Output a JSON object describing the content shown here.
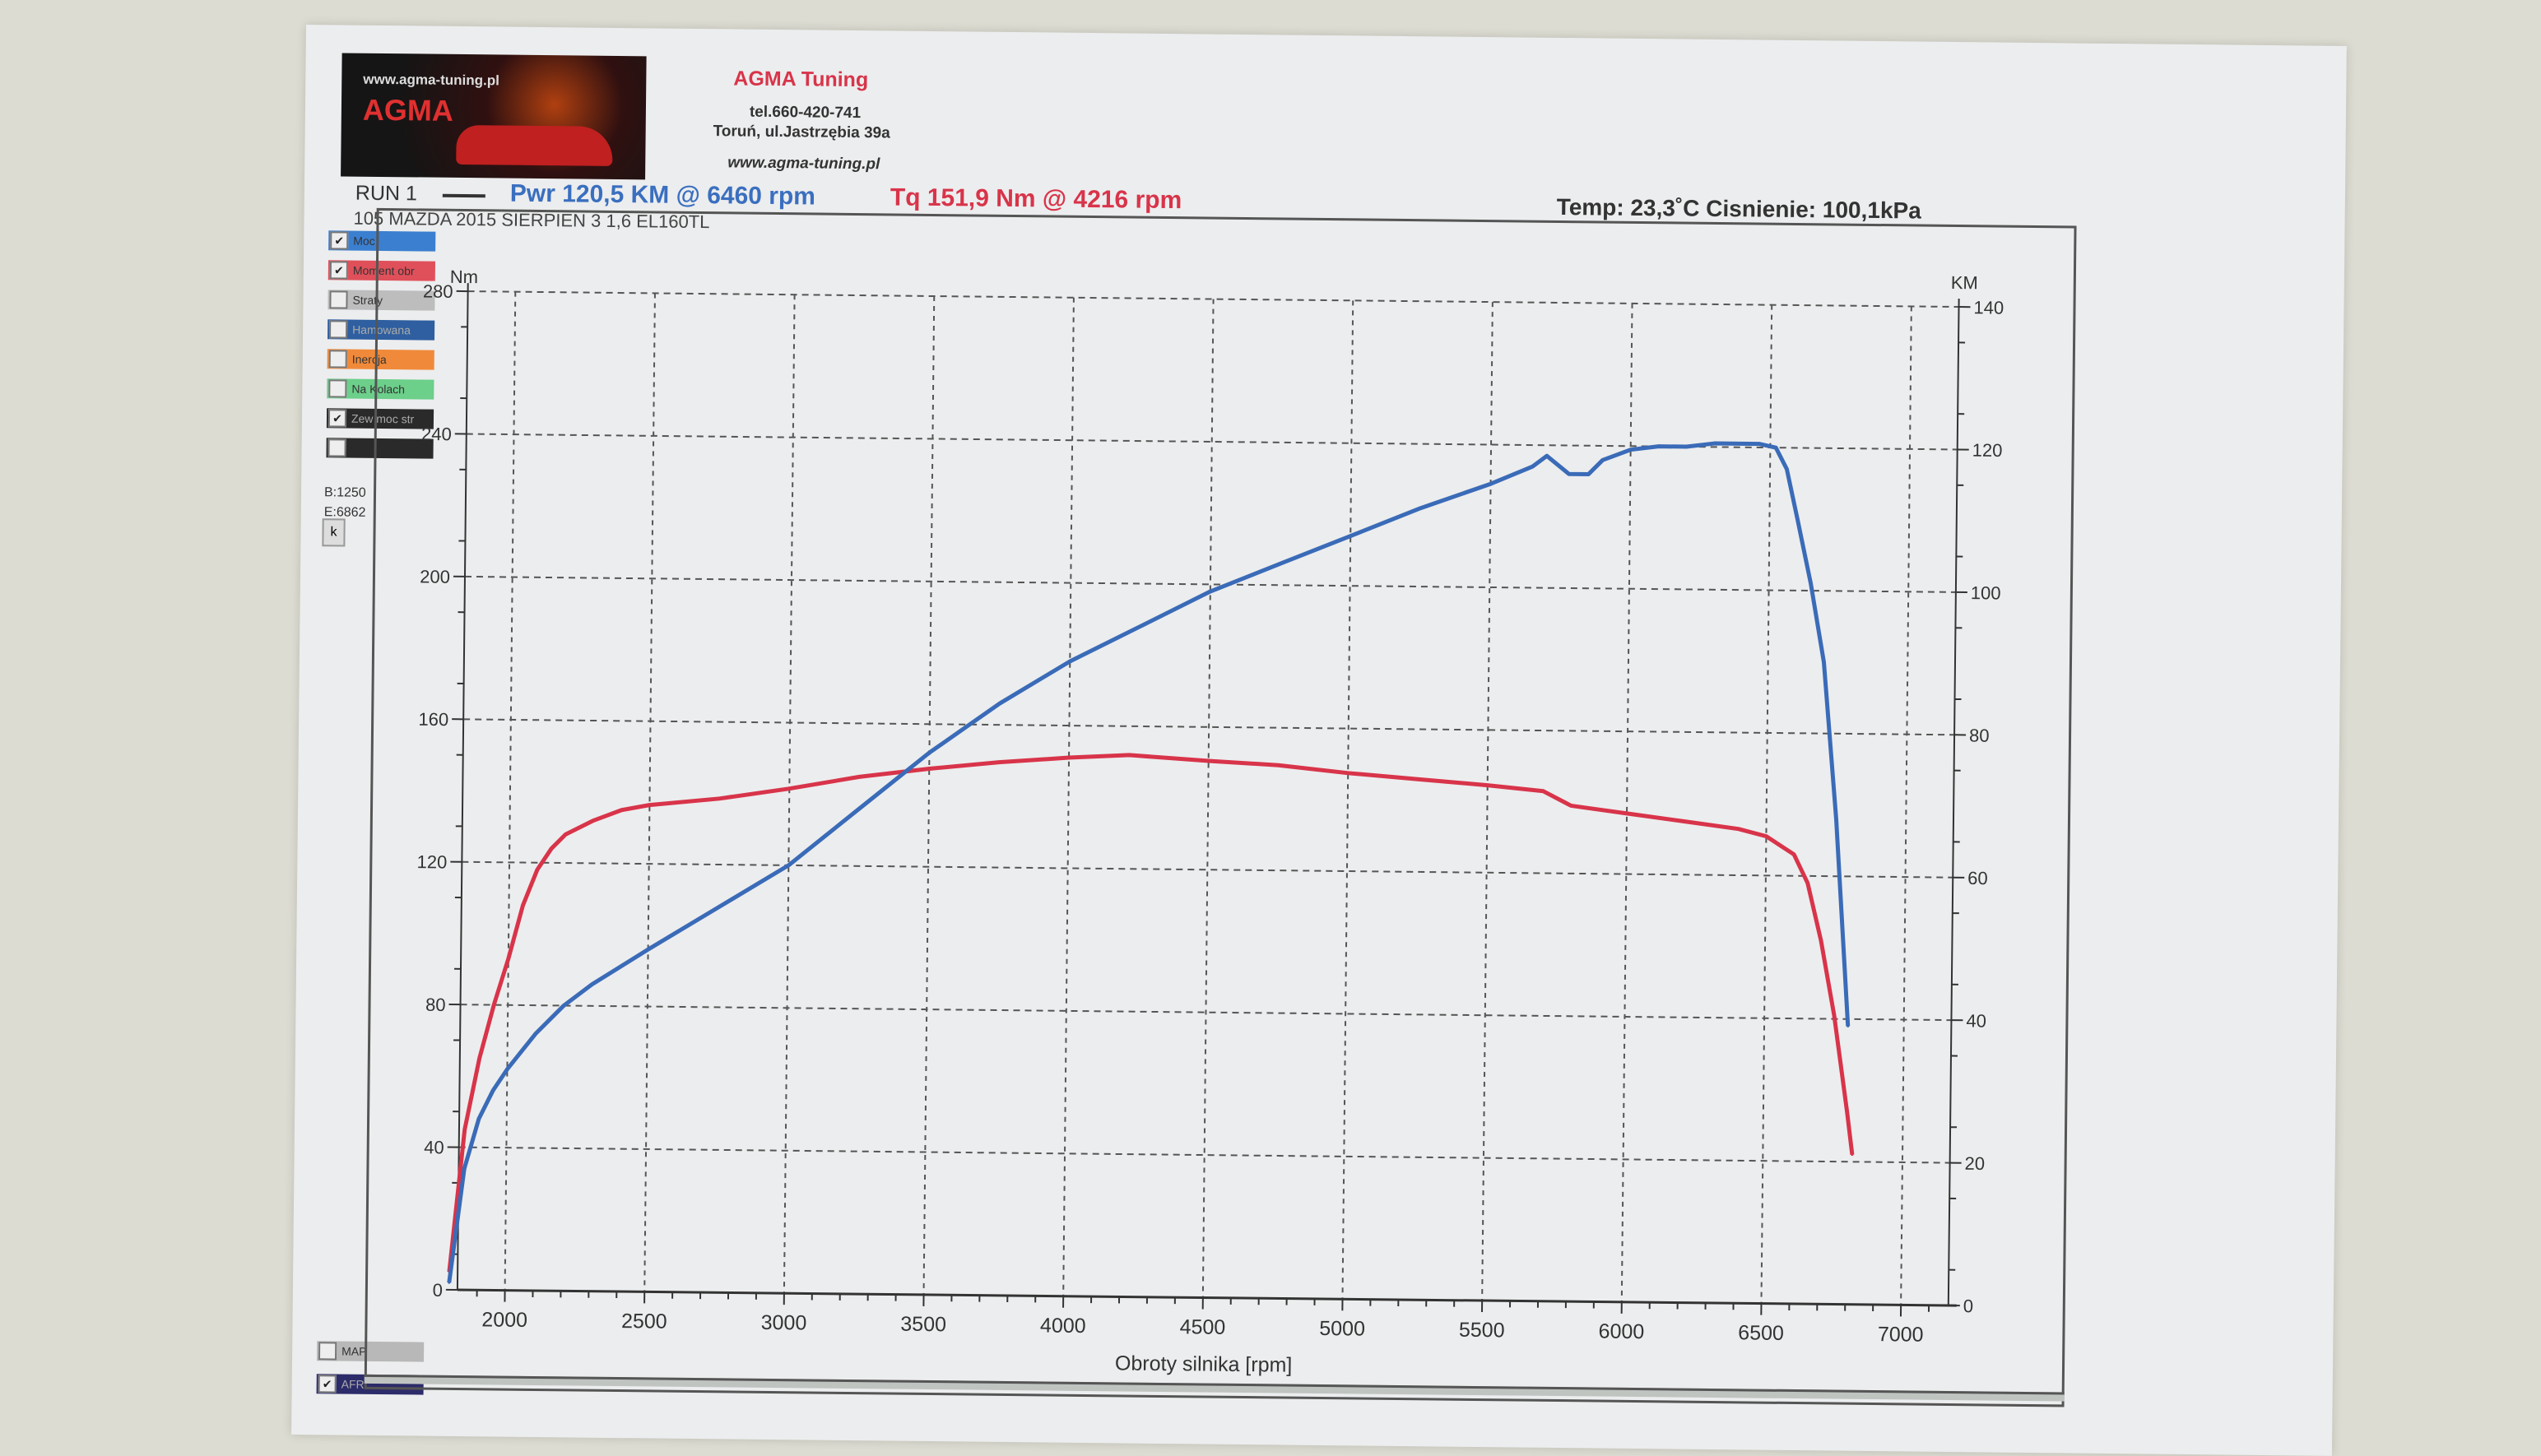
{
  "header": {
    "logo_url_text": "www.agma-tuning.pl",
    "logo_brand": "AGMA",
    "company": "AGMA Tuning",
    "phone": "tel.660-420-741",
    "address": "Toruń, ul.Jastrzębia 39a",
    "website": "www.agma-tuning.pl"
  },
  "run": {
    "label": "RUN 1",
    "power_summary": "Pwr  120,5 KM @ 6460 rpm",
    "torque_summary": "Tq 151,9 Nm @ 4216 rpm",
    "description": "105 MAZDA 2015 SIERPIEN 3 1,6 EL160TL",
    "conditions": "Temp: 23,3˚C   Cisnienie: 100,1kPa"
  },
  "legend": [
    {
      "label": "Moc",
      "checked": true,
      "color": "#3b7fd0"
    },
    {
      "label": "Moment obr",
      "checked": true,
      "color": "#e0505a"
    },
    {
      "label": "Straty",
      "checked": false,
      "color": "#bdbdbd"
    },
    {
      "label": "Hamowana",
      "checked": false,
      "color": "#2f5fa0"
    },
    {
      "label": "Inercja",
      "checked": false,
      "color": "#f08a3a"
    },
    {
      "label": "Na Kolach",
      "checked": false,
      "color": "#6ccf8a"
    },
    {
      "label": "Zew moc str",
      "checked": true,
      "color": "#2a2a2a"
    },
    {
      "label": "",
      "checked": false,
      "color": "#2a2a2a"
    }
  ],
  "range_begin": "B:1250",
  "range_end": "E:6862",
  "k_button": "k",
  "bottom_legend": [
    {
      "label": "MAP",
      "checked": false,
      "color": "#b8b8b8"
    },
    {
      "label": "AFR",
      "checked": true,
      "color": "#2c2c6a"
    }
  ],
  "chart_data": {
    "type": "line",
    "xlabel": "Obroty silnika [rpm]",
    "ylabel_left": "Nm",
    "ylabel_right": "KM",
    "xlim": [
      1830,
      7170
    ],
    "ylim_left": [
      0,
      280
    ],
    "ylim_right": [
      0,
      140
    ],
    "x_ticks": [
      2000,
      2500,
      3000,
      3500,
      4000,
      4500,
      5000,
      5500,
      6000,
      6500,
      7000
    ],
    "y_ticks_left": [
      0,
      40,
      80,
      120,
      160,
      200,
      240,
      280
    ],
    "y_ticks_right": [
      0,
      20,
      40,
      60,
      80,
      100,
      120,
      140
    ],
    "grid": true,
    "series": [
      {
        "name": "Moment obr",
        "axis": "left",
        "color": "#d8344a",
        "x": [
          1800,
          1850,
          1900,
          1950,
          2000,
          2050,
          2100,
          2150,
          2200,
          2300,
          2400,
          2500,
          2750,
          3000,
          3250,
          3500,
          3750,
          4000,
          4216,
          4500,
          4750,
          5000,
          5250,
          5500,
          5700,
          5800,
          5900,
          6000,
          6200,
          6400,
          6500,
          6600,
          6650,
          6700,
          6750,
          6800,
          6820
        ],
        "y": [
          5,
          45,
          65,
          80,
          93,
          108,
          118,
          124,
          128,
          132,
          135,
          136.5,
          138.5,
          141.5,
          145,
          147.5,
          149.5,
          151,
          151.9,
          150.5,
          149.5,
          147.5,
          146,
          144.5,
          143,
          139,
          138,
          137,
          135,
          133,
          131,
          126,
          118,
          102,
          81,
          54,
          42
        ]
      },
      {
        "name": "Moc",
        "axis": "right",
        "color": "#3a6bb8",
        "x": [
          1800,
          1850,
          1900,
          1950,
          2000,
          2100,
          2200,
          2300,
          2500,
          2750,
          3000,
          3250,
          3500,
          3750,
          4000,
          4250,
          4500,
          4750,
          5000,
          5250,
          5500,
          5650,
          5700,
          5780,
          5850,
          5900,
          6000,
          6100,
          6200,
          6300,
          6460,
          6520,
          6560,
          6600,
          6650,
          6700,
          6750,
          6800
        ],
        "y": [
          1,
          17,
          24,
          28,
          31,
          36,
          40,
          43,
          48,
          54,
          60,
          68,
          76,
          83,
          89,
          94,
          99,
          103,
          107,
          111,
          114.5,
          117,
          118.5,
          116,
          116,
          118,
          119.5,
          120,
          120,
          120.5,
          120.5,
          120,
          117,
          110,
          101,
          90,
          68,
          39
        ]
      }
    ]
  }
}
